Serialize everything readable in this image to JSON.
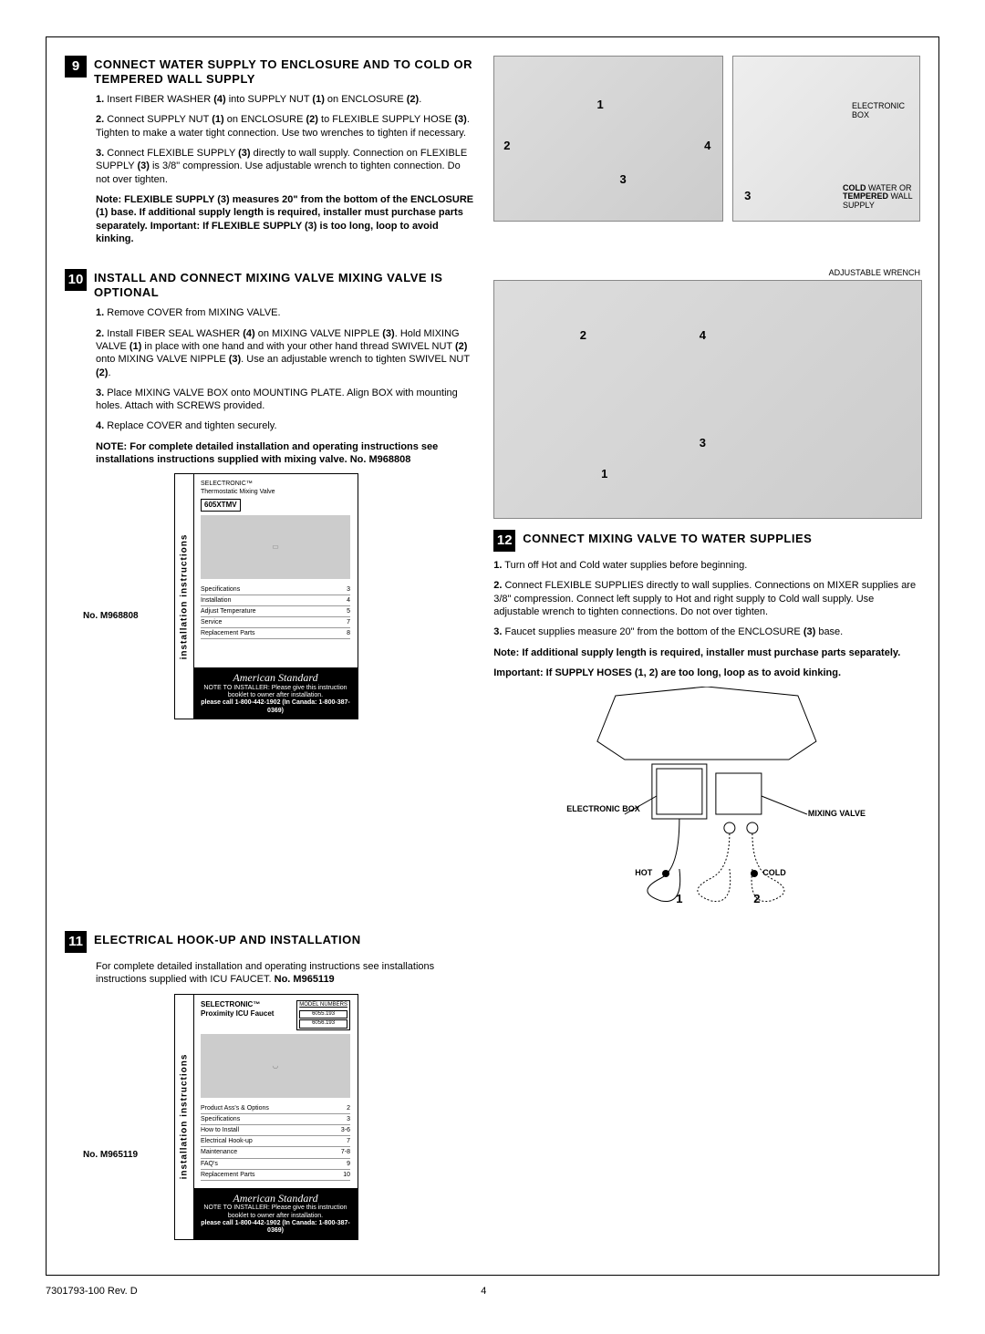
{
  "step9": {
    "number": "9",
    "title": "CONNECT WATER SUPPLY TO ENCLOSURE AND TO COLD OR TEMPERED WALL SUPPLY",
    "items": [
      {
        "n": "1.",
        "t": " Insert FIBER WASHER ",
        "b1": "(4)",
        "t2": " into SUPPLY NUT ",
        "b2": "(1)",
        "t3": " on ENCLOSURE ",
        "b3": "(2)",
        "t4": "."
      },
      {
        "n": "2.",
        "t": " Connect SUPPLY NUT ",
        "b1": "(1)",
        "t2": " on ENCLOSURE ",
        "b2": "(2)",
        "t3": " to FLEXIBLE SUPPLY HOSE ",
        "b3": "(3)",
        "t4": ". Tighten to make a water tight connection. Use two wrenches to tighten if necessary."
      },
      {
        "n": "3.",
        "t": " Connect FLEXIBLE SUPPLY ",
        "b1": "(3)",
        "t2": " directly to wall supply. Connection on FLEXIBLE SUPPLY ",
        "b2": "(3)",
        "t3": " is 3/8\" compression. Use adjustable wrench to tighten connection. Do not over tighten.",
        "b3": "",
        "t4": ""
      }
    ],
    "note": "Note: FLEXIBLE SUPPLY (3) measures 20\" from the bottom of the ENCLOSURE (1) base. If additional supply length is required, installer must purchase parts separately. Important: If FLEXIBLE SUPPLY (3) is too long, loop to avoid kinking.",
    "fig_a_labels": {
      "1": "1",
      "2": "2",
      "3": "3",
      "4": "4"
    },
    "fig_b_labels": {
      "eb": "ELECTRONIC BOX",
      "cold_b": "COLD",
      "cold_r": " WATER OR ",
      "temp_b": "TEMPERED",
      "temp_r": " WALL SUPPLY",
      "n3": "3"
    }
  },
  "step10": {
    "number": "10",
    "title": "INSTALL AND CONNECT MIXING VALVE MIXING VALVE IS OPTIONAL",
    "items": [
      {
        "n": "1.",
        "t": " Remove COVER from MIXING VALVE."
      },
      {
        "n": "2.",
        "t": " Install FIBER SEAL WASHER ",
        "b1": "(4)",
        "t2": " on MIXING VALVE NIPPLE ",
        "b2": "(3)",
        "t3": ". Hold MIXING VALVE ",
        "b3": "(1)",
        "t4": " in place with one hand and with your other hand thread SWIVEL NUT ",
        "b4": "(2)",
        "t5": " onto MIXING VALVE NIPPLE ",
        "b5": "(3)",
        "t6": ". Use an adjustable wrench to tighten SWIVEL NUT ",
        "b6": "(2)",
        "t7": "."
      },
      {
        "n": "3.",
        "t": " Place MIXING VALVE BOX onto MOUNTING PLATE. Align BOX with mounting holes. Attach with SCREWS provided."
      },
      {
        "n": "4.",
        "t": " Replace COVER and tighten securely."
      }
    ],
    "note": "NOTE: For complete detailed installation and operating instructions see installations instructions supplied with mixing valve. No. M968808",
    "fig_labels": {
      "1": "1",
      "2": "2",
      "3": "3",
      "4": "4",
      "adj": "ADJUSTABLE WRENCH"
    },
    "manual": {
      "sidebar": "installation instructions",
      "brand_line": "SELECTRONIC™",
      "subtitle": "Thermostatic Mixing Valve",
      "model": "605XTMV",
      "toc": [
        {
          "l": "Specifications",
          "p": "3"
        },
        {
          "l": "Installation",
          "p": "4"
        },
        {
          "l": "Adjust Temperature",
          "p": "5"
        },
        {
          "l": "Service",
          "p": "7"
        },
        {
          "l": "Replacement Parts",
          "p": "8"
        }
      ],
      "no_label": "No. M968808",
      "footer_top": "NOTE TO INSTALLER: Please give this instruction booklet to owner after installation.",
      "footer_script": "American Standard",
      "footer_phone": "please call 1-800-442-1902 (In Canada: 1-800-387-0369)"
    }
  },
  "step11": {
    "number": "11",
    "title": "ELECTRICAL HOOK-UP AND INSTALLATION",
    "intro": "For complete detailed installation and operating instructions see installations instructions supplied with ICU FAUCET. ",
    "intro_bold": "No. M965119",
    "manual": {
      "sidebar": "installation instructions",
      "brand_line": "SELECTRONIC™",
      "subtitle": "Proximity ICU Faucet",
      "models": [
        "6055.193",
        "6056.193"
      ],
      "models_header": "MODEL NUMBERS",
      "toc": [
        {
          "l": "Product Ass's & Options",
          "p": "2"
        },
        {
          "l": "Specifications",
          "p": "3"
        },
        {
          "l": "How to Install",
          "p": "3-6"
        },
        {
          "l": "Electrical Hook-up",
          "p": "7"
        },
        {
          "l": "Maintenance",
          "p": "7-8"
        },
        {
          "l": "FAQ's",
          "p": "9"
        },
        {
          "l": "Replacement Parts",
          "p": "10"
        }
      ],
      "no_label": "No. M965119",
      "footer_top": "NOTE TO INSTALLER: Please give this instruction booklet to owner after installation.",
      "footer_script": "American Standard",
      "footer_phone": "please call 1-800-442-1902 (In Canada: 1-800-387-0369)"
    }
  },
  "step12": {
    "number": "12",
    "title": "CONNECT MIXING VALVE TO WATER SUPPLIES",
    "items": [
      {
        "n": "1.",
        "t": " Turn off Hot and Cold water supplies before beginning."
      },
      {
        "n": "2.",
        "t": " Connect FLEXIBLE SUPPLIES   directly to wall supplies. Connections on MIXER supplies are 3/8\" compression. Connect left supply to Hot and right supply to Cold wall supply. Use adjustable wrench to tighten connections. Do not over tighten."
      },
      {
        "n": "3.",
        "t": " Faucet supplies measure 20\" from the bottom of the ENCLOSURE ",
        "b1": "(3)",
        "t2": " base."
      }
    ],
    "note1": "Note: If additional supply length is required, installer must purchase parts separately.",
    "note2": "Important: If SUPPLY HOSES (1, 2) are too long, loop as to avoid kinking.",
    "diag": {
      "eb": "ELECTRONIC BOX",
      "mv": "MIXING VALVE",
      "hot": "HOT",
      "cold": "COLD",
      "n1": "1",
      "n2": "2"
    }
  },
  "footer": {
    "doc": "7301793-100 Rev. D",
    "page": "4"
  }
}
